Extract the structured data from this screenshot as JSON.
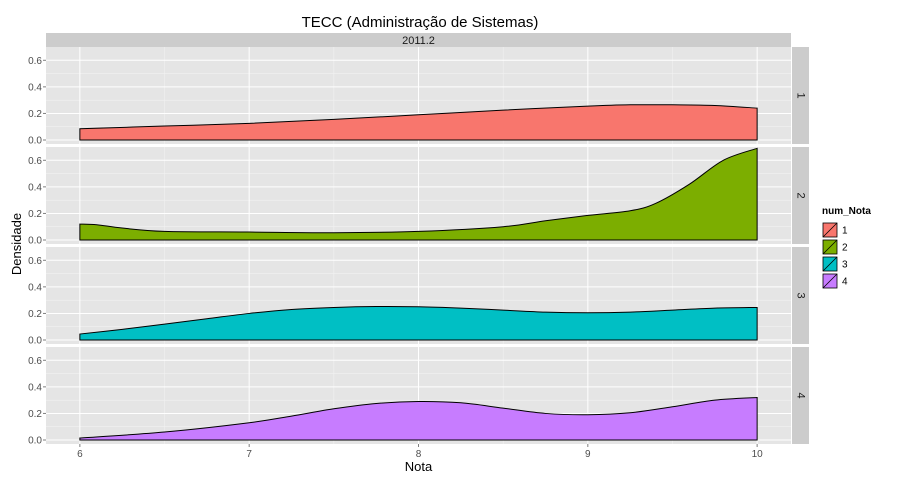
{
  "chart_data": {
    "type": "area",
    "title": "TECC (Administração de Sistemas)",
    "column_facet_label": "2011.2",
    "xlabel": "Nota",
    "ylabel": "Densidade",
    "xlim": [
      5.8,
      10.2
    ],
    "ylim": [
      -0.03,
      0.7
    ],
    "x_ticks": [
      6,
      7,
      8,
      9,
      10
    ],
    "x_tick_labels": [
      "6",
      "7",
      "8",
      "9",
      "10"
    ],
    "y_ticks": [
      0.0,
      0.2,
      0.4,
      0.6
    ],
    "y_tick_labels": [
      "0.0",
      "0.2",
      "0.4",
      "0.6"
    ],
    "grid": true,
    "legend": {
      "title": "num_Nota",
      "position": "right",
      "entries": [
        "1",
        "2",
        "3",
        "4"
      ]
    },
    "colors": {
      "1": "#f8766d",
      "2": "#7cae00",
      "3": "#00bfc4",
      "4": "#c77cff",
      "panel_bg": "#e5e5e5",
      "strip_bg": "#cccccc",
      "grid_major": "#ffffff",
      "grid_minor": "#f2f2f2"
    },
    "series": [
      {
        "name": "1",
        "x": [
          6.0,
          6.5,
          7.0,
          7.5,
          8.0,
          8.5,
          9.0,
          9.25,
          9.5,
          9.75,
          10.0
        ],
        "y": [
          0.085,
          0.105,
          0.125,
          0.155,
          0.19,
          0.225,
          0.255,
          0.265,
          0.265,
          0.26,
          0.24
        ]
      },
      {
        "name": "2",
        "x": [
          6.0,
          6.1,
          6.25,
          6.5,
          7.0,
          7.5,
          8.0,
          8.5,
          8.75,
          9.0,
          9.25,
          9.4,
          9.6,
          9.8,
          10.0
        ],
        "y": [
          0.12,
          0.115,
          0.09,
          0.065,
          0.06,
          0.055,
          0.065,
          0.1,
          0.145,
          0.185,
          0.22,
          0.275,
          0.42,
          0.6,
          0.69
        ]
      },
      {
        "name": "3",
        "x": [
          6.0,
          6.25,
          6.5,
          6.75,
          7.0,
          7.25,
          7.5,
          7.75,
          8.0,
          8.25,
          8.5,
          8.75,
          9.0,
          9.25,
          9.5,
          9.75,
          10.0
        ],
        "y": [
          0.045,
          0.08,
          0.12,
          0.16,
          0.2,
          0.23,
          0.245,
          0.252,
          0.25,
          0.24,
          0.225,
          0.21,
          0.205,
          0.21,
          0.225,
          0.24,
          0.245
        ]
      },
      {
        "name": "4",
        "x": [
          6.0,
          6.5,
          7.0,
          7.25,
          7.5,
          7.75,
          8.0,
          8.25,
          8.5,
          8.75,
          9.0,
          9.25,
          9.5,
          9.75,
          10.0
        ],
        "y": [
          0.015,
          0.06,
          0.13,
          0.18,
          0.235,
          0.275,
          0.29,
          0.28,
          0.24,
          0.2,
          0.19,
          0.205,
          0.25,
          0.3,
          0.32
        ]
      }
    ]
  }
}
